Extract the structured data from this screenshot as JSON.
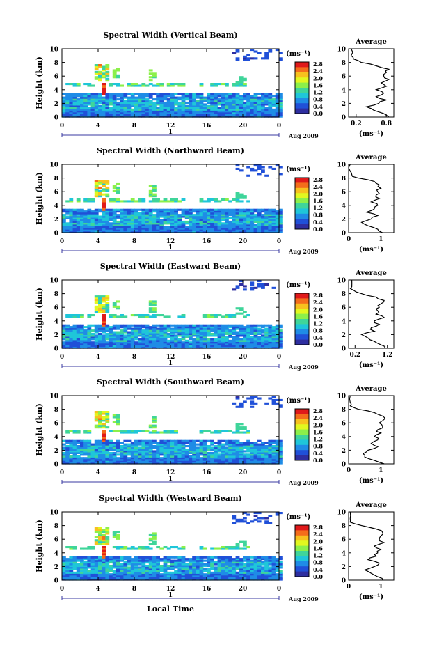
{
  "figure": {
    "bottom_label": "Local Time",
    "date_label": "Aug 2009",
    "day_label": "1",
    "unit_label": "(ms⁻¹)"
  },
  "colorbar": {
    "ticks": [
      "2.8",
      "2.4",
      "2.0",
      "1.6",
      "1.2",
      "0.8",
      "0.4",
      "0.0"
    ],
    "colors": [
      "#e0191a",
      "#f46d1b",
      "#f7c11e",
      "#e2f71f",
      "#8cf04a",
      "#3fd59a",
      "#1fc6d9",
      "#1f8ce6",
      "#2050d8",
      "#2e2ea0"
    ]
  },
  "chart_data": [
    {
      "type": "heatmap",
      "title": "Spectral Width (Vertical Beam)",
      "xlabel": "",
      "ylabel": "Height (km)",
      "xlim": [
        0,
        24
      ],
      "ylim": [
        0,
        10
      ],
      "xticks": [
        "0",
        "4",
        "8",
        "12",
        "16",
        "20",
        "0"
      ],
      "yticks": [
        "0",
        "2",
        "4",
        "6",
        "8",
        "10"
      ],
      "colorbar_range": [
        0.0,
        2.8
      ],
      "profile": {
        "title": "Average",
        "xlabel": "(ms⁻¹)",
        "xticks": [
          "0.2",
          "0.8"
        ],
        "xlim": [
          0.05,
          0.95
        ],
        "height": [
          0,
          0.5,
          1,
          1.5,
          2,
          2.5,
          3,
          3.5,
          4,
          4.5,
          5,
          5.5,
          6,
          6.5,
          7,
          7.5,
          8,
          8.5,
          9,
          10
        ],
        "value": [
          0.85,
          0.75,
          0.55,
          0.4,
          0.65,
          0.8,
          0.6,
          0.75,
          0.6,
          0.8,
          0.7,
          0.85,
          0.75,
          0.8,
          0.85,
          0.6,
          0.3,
          0.15,
          0.1,
          0.1
        ]
      }
    },
    {
      "type": "heatmap",
      "title": "Spectral Width (Northward Beam)",
      "xlabel": "",
      "ylabel": "Height (km)",
      "xlim": [
        0,
        24
      ],
      "ylim": [
        0,
        10
      ],
      "xticks": [
        "0",
        "4",
        "8",
        "12",
        "16",
        "20",
        "0"
      ],
      "yticks": [
        "0",
        "2",
        "4",
        "6",
        "8",
        "10"
      ],
      "colorbar_range": [
        0.0,
        2.8
      ],
      "profile": {
        "title": "Average",
        "xlabel": "(ms⁻¹)",
        "xticks": [
          "0",
          "1"
        ],
        "xlim": [
          0,
          1.4
        ],
        "height": [
          0,
          0.5,
          1,
          1.5,
          2,
          2.5,
          3,
          3.5,
          4,
          4.5,
          5,
          5.5,
          6,
          6.5,
          7,
          7.5,
          8,
          8.5,
          9,
          10
        ],
        "value": [
          1.05,
          0.9,
          0.6,
          0.4,
          0.7,
          0.9,
          0.55,
          0.8,
          0.9,
          0.7,
          0.95,
          0.85,
          0.9,
          1.0,
          0.95,
          0.8,
          0.3,
          0.1,
          0.05,
          0.05
        ]
      }
    },
    {
      "type": "heatmap",
      "title": "Spectral Width (Eastward Beam)",
      "xlabel": "",
      "ylabel": "Height (km)",
      "xlim": [
        0,
        24
      ],
      "ylim": [
        0,
        10
      ],
      "xticks": [
        "0",
        "4",
        "8",
        "12",
        "16",
        "20",
        "0"
      ],
      "yticks": [
        "0",
        "2",
        "4",
        "6",
        "8",
        "10"
      ],
      "colorbar_range": [
        0.0,
        2.8
      ],
      "profile": {
        "title": "Average",
        "xlabel": "(ms⁻¹)",
        "xticks": [
          "0.2",
          "1.2"
        ],
        "xlim": [
          0.0,
          1.4
        ],
        "height": [
          0,
          0.5,
          1,
          1.5,
          2,
          2.5,
          3,
          3.5,
          4,
          4.5,
          5,
          5.5,
          6,
          6.5,
          7,
          7.5,
          8,
          8.5,
          9,
          10
        ],
        "value": [
          1.1,
          1.0,
          0.8,
          0.6,
          0.4,
          0.8,
          0.7,
          0.95,
          0.8,
          1.1,
          0.85,
          0.9,
          0.95,
          1.0,
          1.1,
          0.85,
          0.4,
          0.15,
          0.1,
          0.1
        ]
      }
    },
    {
      "type": "heatmap",
      "title": "Spectral Width (Southward Beam)",
      "xlabel": "",
      "ylabel": "Height (km)",
      "xlim": [
        0,
        24
      ],
      "ylim": [
        0,
        10
      ],
      "xticks": [
        "0",
        "4",
        "8",
        "12",
        "16",
        "20",
        "0"
      ],
      "yticks": [
        "0",
        "2",
        "4",
        "6",
        "8",
        "10"
      ],
      "colorbar_range": [
        0.0,
        2.8
      ],
      "profile": {
        "title": "Average",
        "xlabel": "(ms⁻¹)",
        "xticks": [
          "0",
          "1"
        ],
        "xlim": [
          0,
          1.4
        ],
        "height": [
          0,
          0.5,
          1,
          1.5,
          2,
          2.5,
          3,
          3.5,
          4,
          4.5,
          5,
          5.5,
          6,
          6.5,
          7,
          7.5,
          8,
          8.5,
          9,
          10
        ],
        "value": [
          1.1,
          0.8,
          0.5,
          0.45,
          0.6,
          0.9,
          0.7,
          0.9,
          0.8,
          1.0,
          0.9,
          1.05,
          0.95,
          1.1,
          1.05,
          0.8,
          0.3,
          0.05,
          0.05,
          0.05
        ]
      }
    },
    {
      "type": "heatmap",
      "title": "Spectral Width (Westward Beam)",
      "xlabel": "",
      "ylabel": "Height (km)",
      "xlim": [
        0,
        24
      ],
      "ylim": [
        0,
        10
      ],
      "xticks": [
        "0",
        "4",
        "8",
        "12",
        "16",
        "20",
        "0"
      ],
      "yticks": [
        "0",
        "2",
        "4",
        "6",
        "8",
        "10"
      ],
      "colorbar_range": [
        0.0,
        2.8
      ],
      "profile": {
        "title": "Average",
        "xlabel": "(ms⁻¹)",
        "xticks": [
          "0",
          "1"
        ],
        "xlim": [
          0,
          1.4
        ],
        "height": [
          0,
          0.5,
          1,
          1.5,
          2,
          2.5,
          3,
          3.5,
          4,
          4.5,
          5,
          5.5,
          6,
          6.5,
          7,
          7.5,
          8,
          8.5,
          9,
          10
        ],
        "value": [
          1.05,
          0.9,
          0.7,
          0.5,
          0.8,
          0.95,
          0.6,
          0.85,
          0.9,
          1.0,
          0.8,
          1.1,
          0.95,
          1.0,
          1.05,
          0.85,
          0.4,
          0.05,
          0.05,
          0.05
        ]
      }
    }
  ]
}
